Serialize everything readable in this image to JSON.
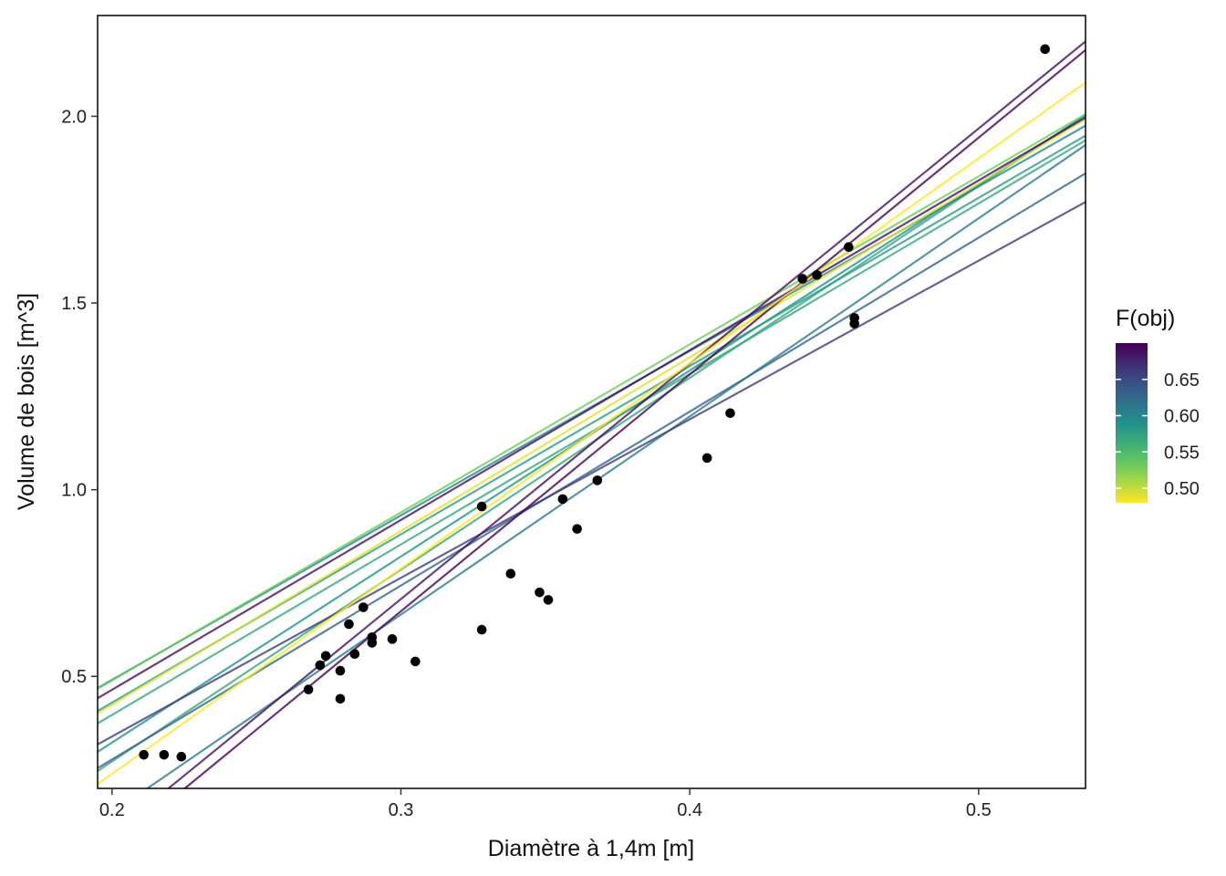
{
  "chart_data": {
    "type": "scatter",
    "title": "",
    "xlabel": "Diamètre à 1,4m  [m]",
    "ylabel": "Volume de bois  [m^3]",
    "xlim": [
      0.195,
      0.537
    ],
    "ylim": [
      0.2,
      2.27
    ],
    "x_ticks": [
      {
        "value": 0.2,
        "label": "0.2"
      },
      {
        "value": 0.3,
        "label": "0.3"
      },
      {
        "value": 0.4,
        "label": "0.4"
      },
      {
        "value": 0.5,
        "label": "0.5"
      }
    ],
    "y_ticks": [
      {
        "value": 0.5,
        "label": "0.5"
      },
      {
        "value": 1.0,
        "label": "1.0"
      },
      {
        "value": 1.5,
        "label": "1.5"
      },
      {
        "value": 2.0,
        "label": "2.0"
      }
    ],
    "grid": false,
    "points": [
      {
        "x": 0.211,
        "y": 0.29
      },
      {
        "x": 0.218,
        "y": 0.29
      },
      {
        "x": 0.224,
        "y": 0.285
      },
      {
        "x": 0.268,
        "y": 0.465
      },
      {
        "x": 0.272,
        "y": 0.53
      },
      {
        "x": 0.274,
        "y": 0.555
      },
      {
        "x": 0.279,
        "y": 0.515
      },
      {
        "x": 0.279,
        "y": 0.44
      },
      {
        "x": 0.282,
        "y": 0.64
      },
      {
        "x": 0.284,
        "y": 0.56
      },
      {
        "x": 0.287,
        "y": 0.685
      },
      {
        "x": 0.29,
        "y": 0.605
      },
      {
        "x": 0.29,
        "y": 0.59
      },
      {
        "x": 0.297,
        "y": 0.6
      },
      {
        "x": 0.305,
        "y": 0.54
      },
      {
        "x": 0.328,
        "y": 0.955
      },
      {
        "x": 0.328,
        "y": 0.625
      },
      {
        "x": 0.338,
        "y": 0.775
      },
      {
        "x": 0.348,
        "y": 0.725
      },
      {
        "x": 0.351,
        "y": 0.705
      },
      {
        "x": 0.356,
        "y": 0.975
      },
      {
        "x": 0.361,
        "y": 0.895
      },
      {
        "x": 0.368,
        "y": 1.025
      },
      {
        "x": 0.406,
        "y": 1.085
      },
      {
        "x": 0.414,
        "y": 1.205
      },
      {
        "x": 0.439,
        "y": 1.565
      },
      {
        "x": 0.444,
        "y": 1.575
      },
      {
        "x": 0.455,
        "y": 1.65
      },
      {
        "x": 0.457,
        "y": 1.46
      },
      {
        "x": 0.457,
        "y": 1.445
      },
      {
        "x": 0.523,
        "y": 2.18
      }
    ],
    "fit_lines": [
      {
        "intercept": -0.7555,
        "slope": 5.1379,
        "fobj": 0.57
      },
      {
        "intercept": -0.6738,
        "slope": 4.9828,
        "fobj": 0.59
      },
      {
        "intercept": -0.4715,
        "slope": 4.5063,
        "fobj": 0.58
      },
      {
        "intercept": -0.3898,
        "slope": 4.4037,
        "fobj": 0.6
      },
      {
        "intercept": -0.4109,
        "slope": 4.5004,
        "fobj": 0.53
      },
      {
        "intercept": -0.5165,
        "slope": 4.5665,
        "fobj": 0.57
      },
      {
        "intercept": -0.6542,
        "slope": 4.6584,
        "fobj": 0.63
      },
      {
        "intercept": -0.926,
        "slope": 5.3057,
        "fobj": 0.61
      },
      {
        "intercept": -0.5103,
        "slope": 4.2475,
        "fobj": 0.66
      },
      {
        "intercept": -0.5068,
        "slope": 4.6534,
        "fobj": 0.49
      },
      {
        "intercept": -0.4452,
        "slope": 4.5472,
        "fobj": 0.69
      },
      {
        "intercept": -1.2282,
        "slope": 6.3423,
        "fobj": 0.7
      },
      {
        "intercept": -1.1834,
        "slope": 6.3017,
        "fobj": 0.69
      },
      {
        "intercept": -0.8599,
        "slope": 5.4947,
        "fobj": 0.48
      }
    ],
    "colorbar": {
      "title": "F(obj)",
      "min": 0.48,
      "max": 0.7,
      "ticks": [
        {
          "value": 0.5,
          "label": "0.50"
        },
        {
          "value": 0.55,
          "label": "0.55"
        },
        {
          "value": 0.6,
          "label": "0.60"
        },
        {
          "value": 0.65,
          "label": "0.65"
        }
      ],
      "palette": "viridis",
      "placement": "right",
      "colors": [
        "#440154",
        "#3b528b",
        "#21918c",
        "#5ec962",
        "#fde725"
      ]
    },
    "point_color": "#000000"
  }
}
